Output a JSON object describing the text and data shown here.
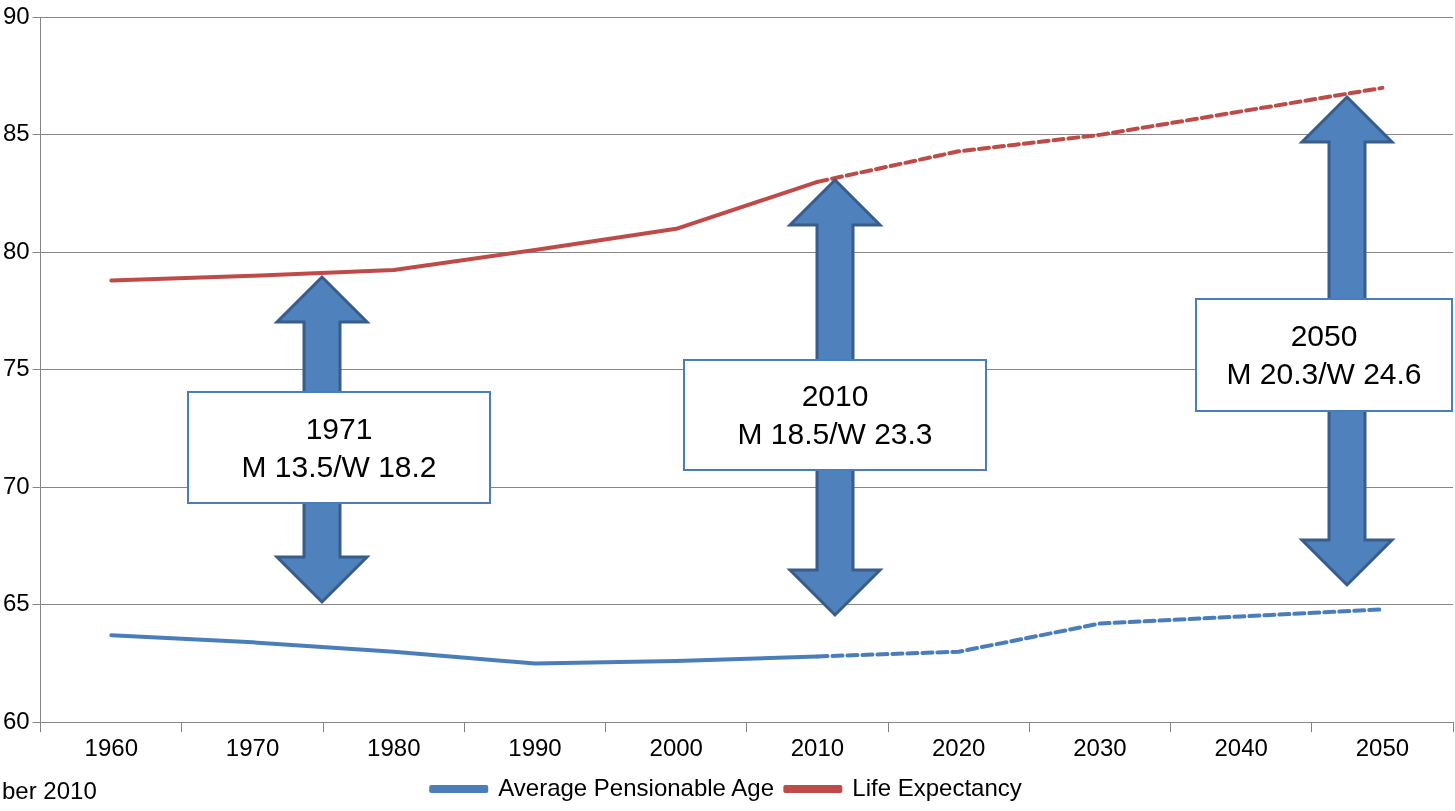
{
  "chart_data": {
    "type": "line",
    "categories": [
      "1960",
      "1970",
      "1980",
      "1990",
      "2000",
      "2010",
      "2020",
      "2030",
      "2040",
      "2050"
    ],
    "series": [
      {
        "name": "Average Pensionable Age",
        "color": "#4a7ebb",
        "values": [
          63.7,
          63.4,
          63.0,
          62.5,
          62.6,
          62.8,
          null,
          null,
          null,
          null
        ]
      },
      {
        "color": "#4a7ebb",
        "line_style": "dashed",
        "values": [
          null,
          null,
          null,
          null,
          null,
          62.8,
          63.0,
          64.2,
          64.5,
          64.8
        ]
      },
      {
        "name": "Life Expectancy",
        "color": "#be4b48",
        "values": [
          78.8,
          79.0,
          79.25,
          80.1,
          81.0,
          83.0,
          null,
          null,
          null,
          null
        ]
      },
      {
        "color": "#be4b48",
        "line_style": "dashed",
        "values": [
          null,
          null,
          null,
          null,
          null,
          83.0,
          84.3,
          85.0,
          86.0,
          87.0
        ]
      }
    ],
    "ylim": [
      60,
      90
    ],
    "yticks": [
      60,
      65,
      70,
      75,
      80,
      85,
      90
    ],
    "grid": "y",
    "legend": "bottom",
    "marker": "none",
    "line_style": "solid",
    "annotations": [
      "1971\nM 13.5/W 18.2",
      "2010\nM 18.5/W 23.3",
      "2050\nM 20.3/W 24.6",
      "ber 2010"
    ]
  }
}
